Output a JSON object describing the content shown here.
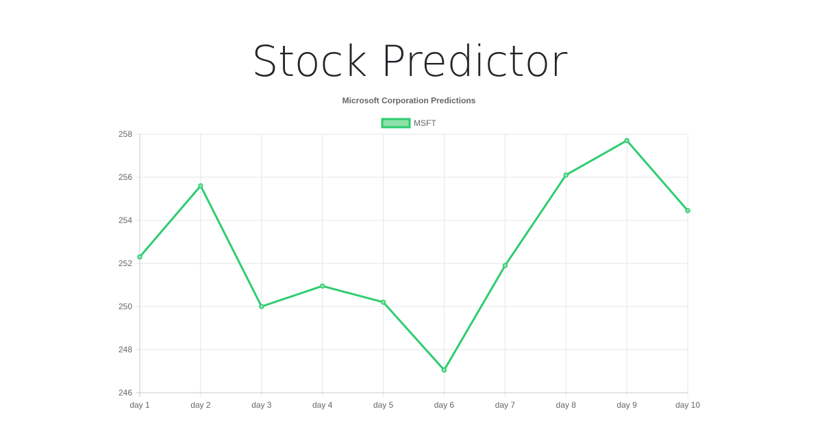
{
  "page": {
    "title": "Stock Predictor"
  },
  "chart_data": {
    "type": "line",
    "title": "Microsoft Corporation Predictions",
    "categories": [
      "day 1",
      "day 2",
      "day 3",
      "day 4",
      "day 5",
      "day 6",
      "day 7",
      "day 8",
      "day 9",
      "day 10"
    ],
    "series": [
      {
        "name": "MSFT",
        "values": [
          252.3,
          255.6,
          250.0,
          250.95,
          250.2,
          247.05,
          251.9,
          256.1,
          257.7,
          254.45
        ]
      }
    ],
    "ylim": [
      246,
      258
    ],
    "yticks": [
      246,
      248,
      250,
      252,
      254,
      256,
      258
    ],
    "grid": true,
    "legend_position": "top-center",
    "colors": {
      "line": "#2ecc71",
      "legend_fill": "#8ee1a8",
      "grid": "#e5e5e5",
      "axis": "#c8c8c8",
      "text": "#666666"
    }
  }
}
